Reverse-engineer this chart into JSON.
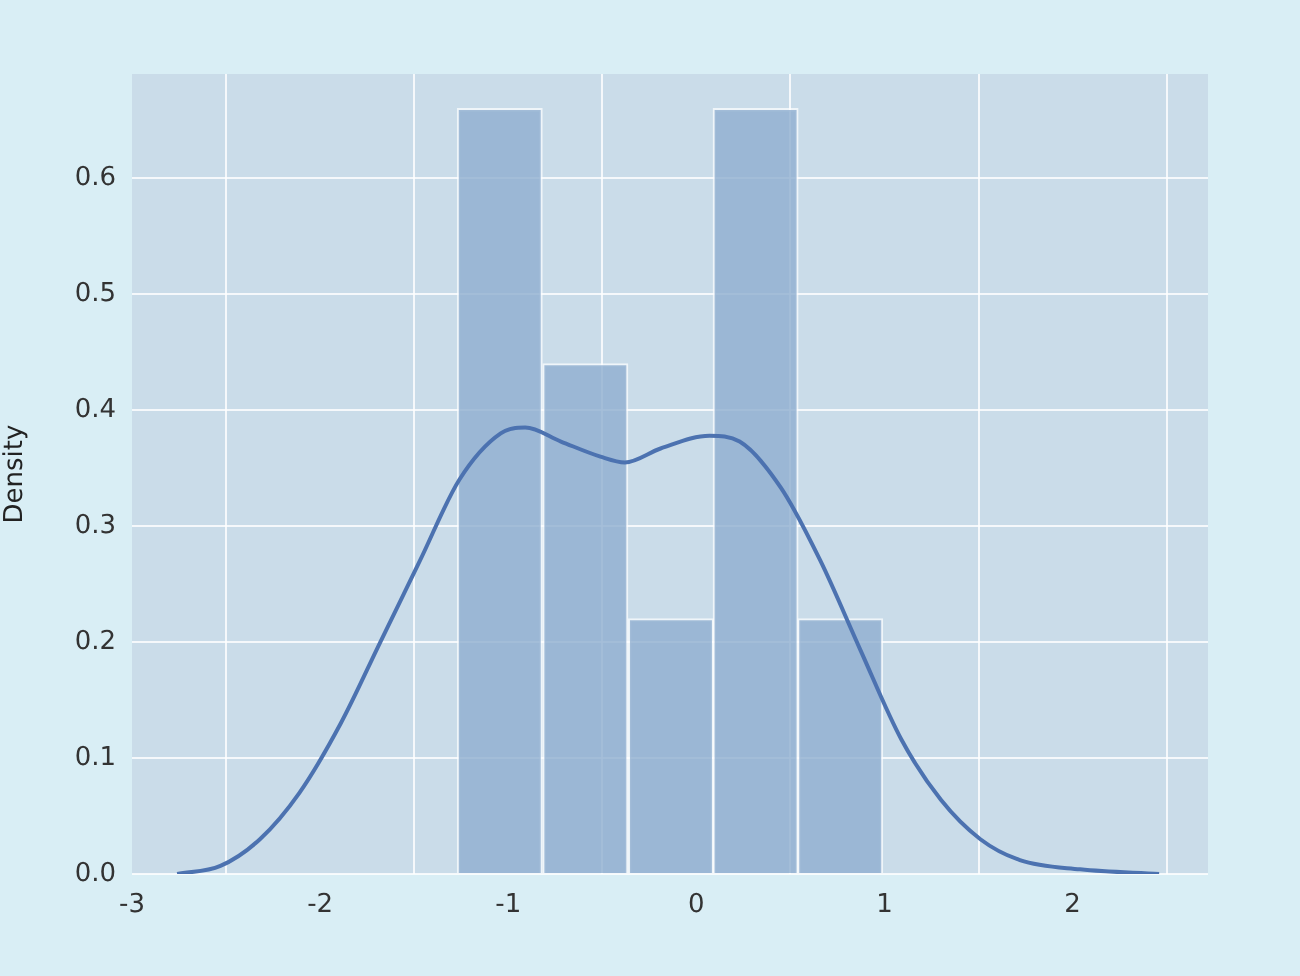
{
  "chart_data": {
    "type": "histogram",
    "ylabel": "Density",
    "bins": [
      -1.27,
      -0.82,
      -0.36,
      0.09,
      0.54,
      0.99
    ],
    "values": [
      0.66,
      0.44,
      0.22,
      0.66,
      0.22
    ],
    "color": "#8eaed0",
    "series": [
      {
        "type": "line",
        "color": "#4c72b0",
        "x": [
          -2.76,
          -2.53,
          -2.32,
          -2.11,
          -1.89,
          -1.68,
          -1.47,
          -1.26,
          -1.04,
          -0.91,
          -0.72,
          -0.51,
          -0.38,
          -0.19,
          0.07,
          0.23,
          0.45,
          0.66,
          0.87,
          1.09,
          1.3,
          1.51,
          1.72,
          2.04,
          2.46
        ],
        "values": [
          0,
          0.007,
          0.03,
          0.07,
          0.13,
          0.2,
          0.27,
          0.34,
          0.38,
          0.385,
          0.373,
          0.36,
          0.355,
          0.367,
          0.378,
          0.373,
          0.333,
          0.27,
          0.194,
          0.116,
          0.064,
          0.03,
          0.012,
          0.004,
          0
        ]
      }
    ],
    "xlim": [
      -3,
      2.72
    ],
    "ylim": [
      0,
      0.69
    ],
    "xticks": [
      -3,
      -2,
      -1,
      0,
      1,
      2
    ],
    "yticks": [
      {
        "value": 0,
        "label": "0.0"
      },
      0.1,
      0.2,
      0.3,
      0.4,
      0.5,
      0.6
    ],
    "grid": true,
    "legend": false,
    "marker": "none"
  }
}
